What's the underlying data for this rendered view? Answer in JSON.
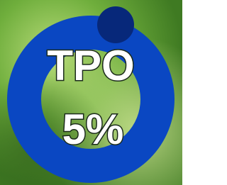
{
  "widget": {
    "label": "TPO",
    "value_text": "5%"
  }
}
